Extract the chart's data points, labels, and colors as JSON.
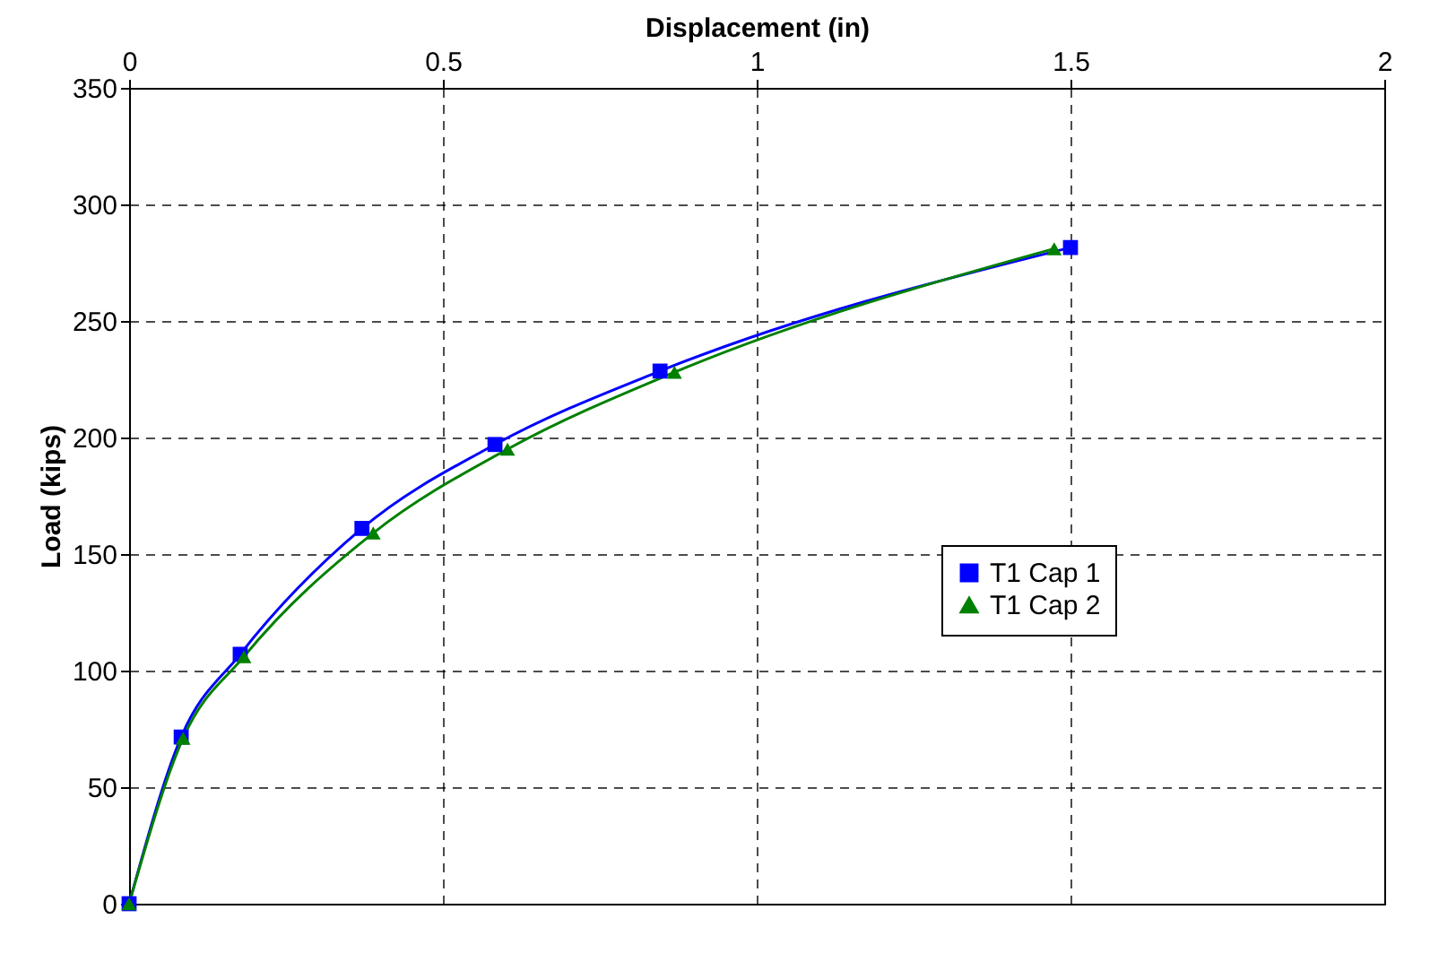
{
  "chart_data": {
    "type": "line",
    "xlabel": "Displacement (in)",
    "ylabel": "Load (kips)",
    "xlim": [
      0,
      2
    ],
    "xticks": [
      0,
      0.5,
      1,
      1.5,
      2
    ],
    "ylim": [
      0,
      350
    ],
    "yticks": [
      0,
      50,
      100,
      150,
      200,
      250,
      300,
      350
    ],
    "grid": true,
    "legend": "bottom right",
    "series": [
      {
        "name": "T1 Cap 1",
        "color": "#0000ff",
        "marker": "square",
        "x": [
          0,
          0.083,
          0.177,
          0.371,
          0.583,
          0.846,
          1.5
        ],
        "values": [
          0,
          71.5,
          107,
          161,
          197,
          228.5,
          281.5
        ]
      },
      {
        "name": "T1 Cap 2",
        "color": "#008000",
        "marker": "triangle",
        "x": [
          0,
          0.086,
          0.183,
          0.389,
          0.603,
          0.869,
          1.474
        ],
        "values": [
          0,
          71,
          106,
          159,
          195,
          228,
          281
        ]
      }
    ]
  }
}
